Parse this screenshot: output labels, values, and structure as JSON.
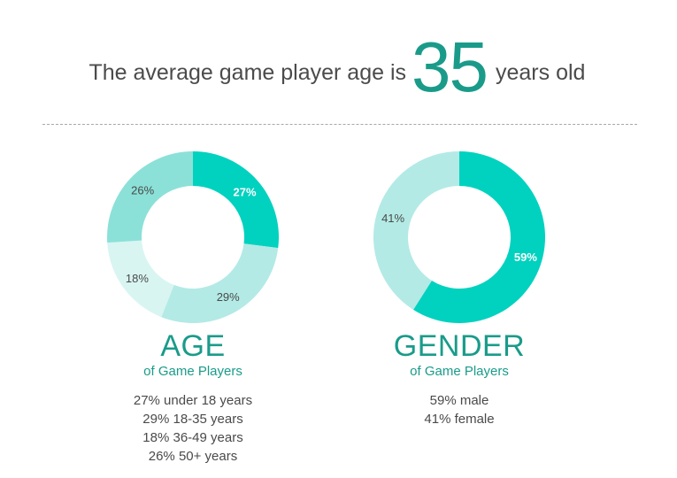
{
  "headline": {
    "prefix": "The average game player age is",
    "number": "35",
    "suffix": "years old"
  },
  "chart_data": [
    {
      "type": "pie",
      "title": "AGE",
      "subtitle": "of Game Players",
      "series": [
        {
          "label": "under 18 years",
          "value": 27,
          "display": "27%",
          "color": "#00d2bf",
          "label_color": "#ffffff"
        },
        {
          "label": "18-35 years",
          "value": 29,
          "display": "29%",
          "color": "#b3eae5",
          "label_color": "#4a4a4a"
        },
        {
          "label": "36-49 years",
          "value": 18,
          "display": "18%",
          "color": "#d8f5f2",
          "label_color": "#4a4a4a"
        },
        {
          "label": "50+ years",
          "value": 26,
          "display": "26%",
          "color": "#8be1d8",
          "label_color": "#4a4a4a"
        }
      ],
      "legend": [
        "27% under 18 years",
        "29% 18-35 years",
        "18% 36-49 years",
        "26% 50+ years"
      ]
    },
    {
      "type": "pie",
      "title": "GENDER",
      "subtitle": "of Game Players",
      "series": [
        {
          "label": "male",
          "value": 59,
          "display": "59%",
          "color": "#00d2bf",
          "label_color": "#ffffff"
        },
        {
          "label": "female",
          "value": 41,
          "display": "41%",
          "color": "#b3eae5",
          "label_color": "#4a4a4a"
        }
      ],
      "legend": [
        "59% male",
        "41% female"
      ]
    }
  ]
}
